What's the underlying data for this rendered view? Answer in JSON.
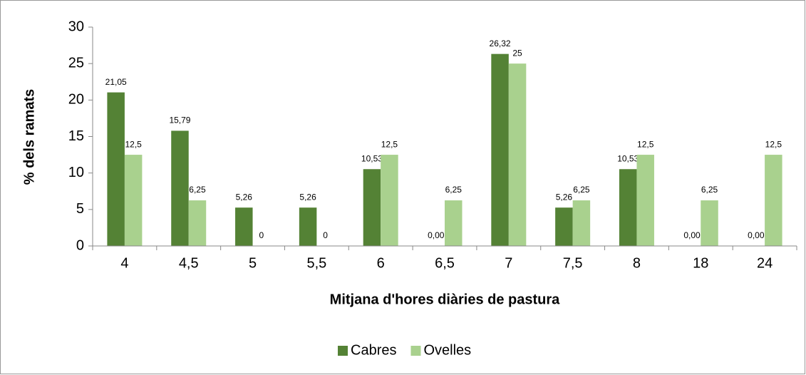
{
  "chart_data": {
    "type": "bar",
    "x_label": "Mitjana d'hores diàries de pastura",
    "y_label": "% dels ramats",
    "categories": [
      "4",
      "4,5",
      "5",
      "5,5",
      "6",
      "6,5",
      "7",
      "7,5",
      "8",
      "18",
      "24"
    ],
    "series": [
      {
        "name": "Cabres",
        "color": "#548235",
        "values": [
          21.05,
          15.79,
          5.26,
          5.26,
          10.53,
          0,
          26.32,
          5.26,
          10.53,
          0,
          0
        ],
        "value_labels": [
          "21,05",
          "15,79",
          "5,26",
          "5,26",
          "10,53",
          "0,00",
          "26,32",
          "5,26",
          "10,53",
          "0,00",
          "0,00"
        ]
      },
      {
        "name": "Ovelles",
        "color": "#a9d18e",
        "values": [
          12.5,
          6.25,
          0,
          0,
          12.5,
          6.25,
          25,
          6.25,
          12.5,
          6.25,
          12.5
        ],
        "value_labels": [
          "12,5",
          "6,25",
          "0",
          "0",
          "12,5",
          "6,25",
          "25",
          "6,25",
          "12,5",
          "6,25",
          "12,5"
        ]
      }
    ],
    "ylim": [
      0,
      30
    ],
    "yticks": [
      0,
      5,
      10,
      15,
      20,
      25,
      30
    ],
    "legend": "bottom"
  }
}
